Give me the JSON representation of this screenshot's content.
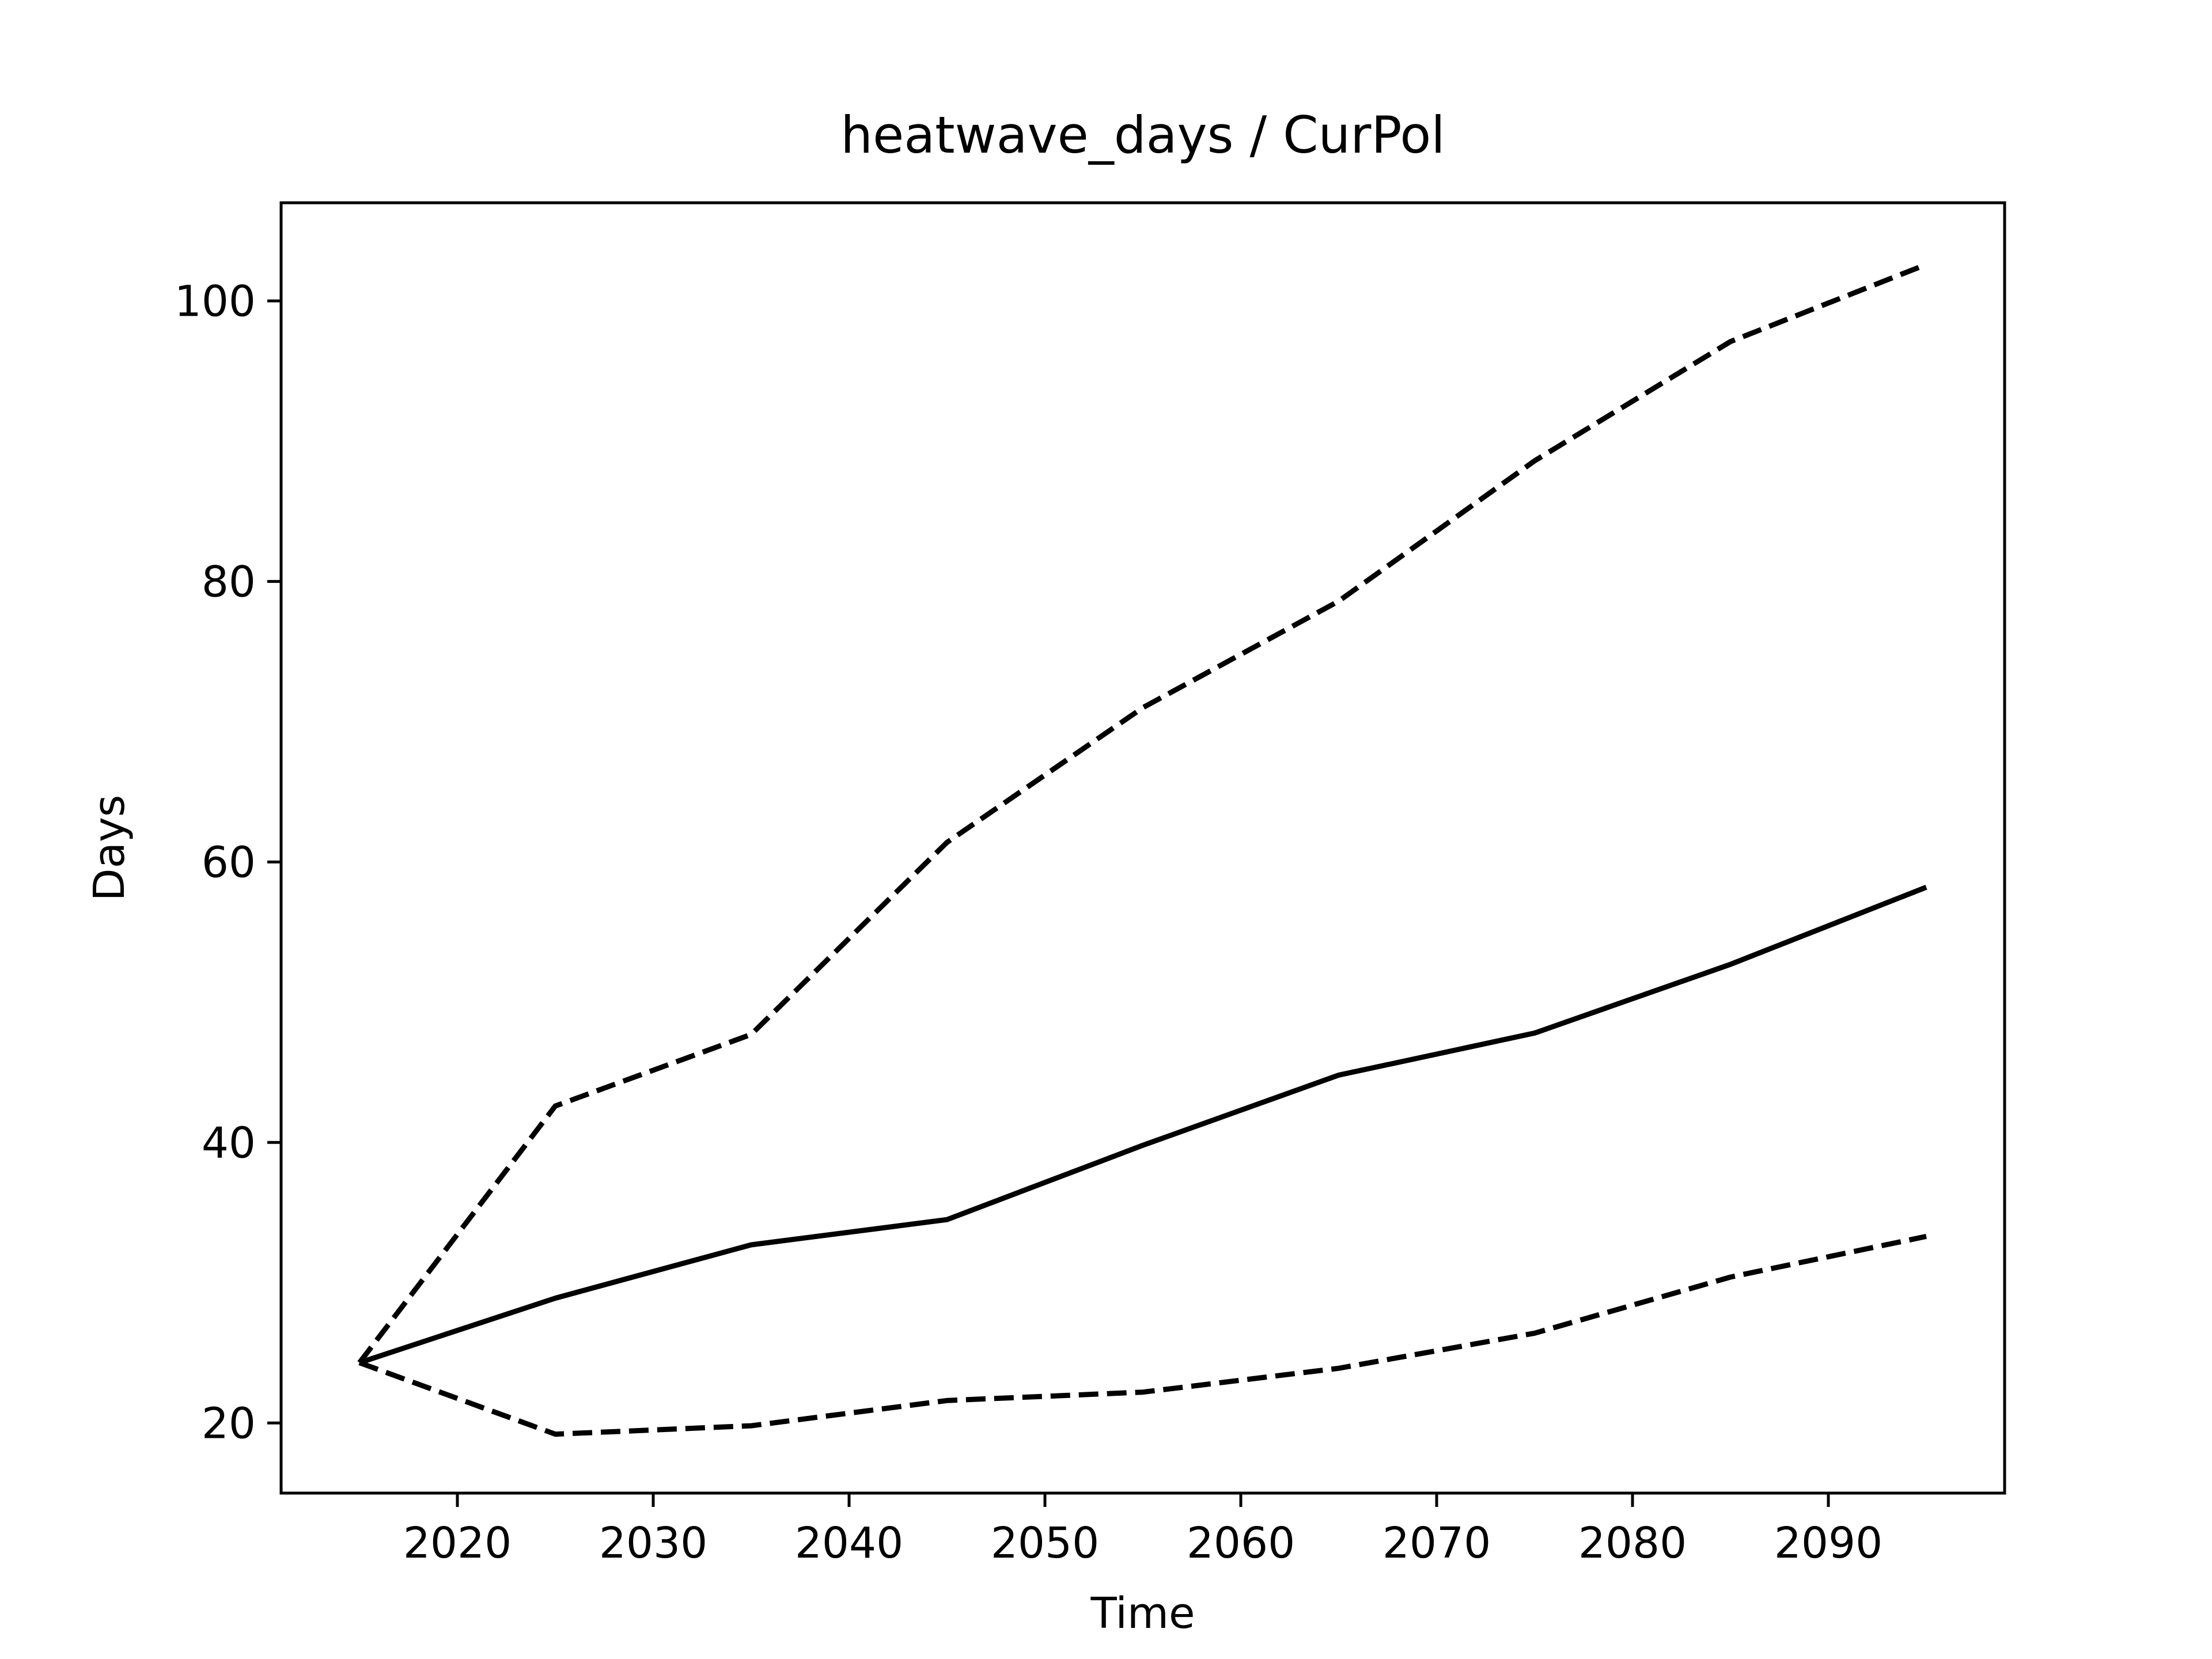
{
  "chart_data": {
    "type": "line",
    "title": "heatwave_days / CurPol",
    "xlabel": "Time",
    "ylabel": "Days",
    "xlim": [
      2011,
      2099
    ],
    "ylim": [
      15,
      107
    ],
    "x_ticks": [
      2020,
      2030,
      2040,
      2050,
      2060,
      2070,
      2080,
      2090
    ],
    "y_ticks": [
      20,
      40,
      60,
      80,
      100
    ],
    "grid": false,
    "legend": "none",
    "line_color": "#000000",
    "x": [
      2015,
      2025,
      2035,
      2045,
      2055,
      2065,
      2075,
      2085,
      2095
    ],
    "series": [
      {
        "style": "solid",
        "values": [
          24.3,
          28.9,
          32.7,
          34.5,
          39.8,
          44.8,
          47.8,
          52.7,
          58.2
        ]
      },
      {
        "style": "dashed",
        "values": [
          24.3,
          42.6,
          47.7,
          61.4,
          71.0,
          78.6,
          88.6,
          97.1,
          102.6
        ]
      },
      {
        "style": "dashed",
        "values": [
          24.3,
          19.2,
          19.8,
          21.6,
          22.2,
          23.9,
          26.4,
          30.4,
          33.3
        ]
      }
    ]
  }
}
